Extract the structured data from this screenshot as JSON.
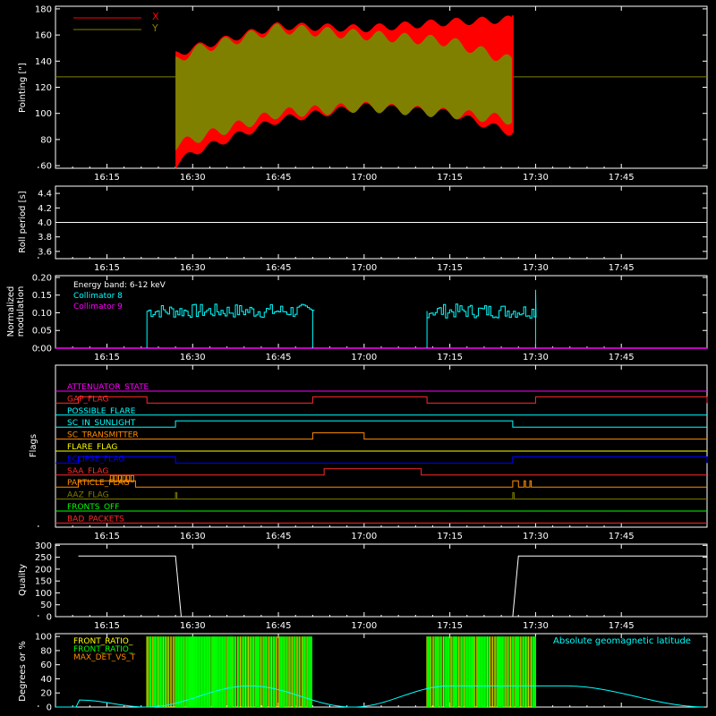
{
  "time_axis": {
    "start_hour": 16.1,
    "end_hour": 18.0,
    "tick_hours": [
      16.25,
      16.5,
      16.75,
      17.0,
      17.25,
      17.5,
      17.75
    ],
    "tick_labels": [
      "16:15",
      "16:30",
      "16:45",
      "17:00",
      "17:15",
      "17:30",
      "17:45"
    ]
  },
  "panels": {
    "pointing": {
      "ylabel": "Pointing [\"]",
      "yticks": [
        "60",
        "80",
        "100",
        "120",
        "140",
        "160",
        "180"
      ],
      "legend": [
        {
          "name": "X",
          "color": "#ff0000"
        },
        {
          "name": "Y",
          "color": "#808000"
        }
      ]
    },
    "roll": {
      "ylabel": "Roll period [s]",
      "yticks": [
        "3.6",
        "3.8",
        "4.0",
        "4.2",
        "4.4"
      ]
    },
    "modulation": {
      "ylabel": "Normalized modulation",
      "yticks": [
        "0.00",
        "0.05",
        "0.10",
        "0.15",
        "0.20"
      ],
      "legend": [
        {
          "name": "Energy band: 6-12 keV",
          "color": "#ffffff"
        },
        {
          "name": "Collimator 8",
          "color": "#00ffff"
        },
        {
          "name": "Collimator 9",
          "color": "#ff00ff"
        }
      ]
    },
    "flags": {
      "ylabel": "Flags",
      "names": [
        "ATTENUATOR_STATE",
        "GAP_FLAG",
        "POSSIBLE_FLARE",
        "SC_IN_SUNLIGHT",
        "SC_TRANSMITTER",
        "FLARE_FLAG",
        "ECLIPSE_FLAG",
        "SAA_FLAG",
        "PARTICLE_FLAG",
        "AAZ_FLAG",
        "FRONTS_OFF",
        "BAD_PACKETS"
      ],
      "colors": [
        "#ff00ff",
        "#ff2a2a",
        "#00ffff",
        "#00ffff",
        "#ff8c00",
        "#ffff00",
        "#0000ff",
        "#ff2a2a",
        "#ff8c00",
        "#808000",
        "#00ff00",
        "#ff2a2a"
      ]
    },
    "quality": {
      "ylabel": "Quality",
      "yticks": [
        "0",
        "50",
        "100",
        "150",
        "200",
        "250",
        "300"
      ]
    },
    "degrees": {
      "ylabel": "Degrees or %",
      "yticks": [
        "0",
        "20",
        "40",
        "60",
        "80",
        "100"
      ],
      "legend": [
        {
          "name": "FRONT_RATIO_",
          "color": "#ffff00"
        },
        {
          "name": "FRONT_RATIO_",
          "color": "#00ff00"
        },
        {
          "name": "MAX_DET_VS_T",
          "color": "#ff8c00"
        }
      ],
      "right_legend": {
        "name": "Absolute geomagnetic latitude",
        "color": "#00ffff"
      }
    }
  },
  "chart_data": [
    {
      "type": "area",
      "title": "",
      "ylabel": "Pointing [\"]",
      "ylim": [
        60,
        180
      ],
      "reference_line_y": 128,
      "series": [
        {
          "name": "X",
          "color": "#ff0000",
          "x": [
            "16:27",
            "16:30",
            "16:45",
            "17:00",
            "17:15",
            "17:26"
          ],
          "upper": [
            145,
            150,
            167,
            165,
            170,
            172
          ],
          "lower": [
            60,
            70,
            95,
            105,
            100,
            85
          ]
        },
        {
          "name": "Y",
          "color": "#808000",
          "x": [
            "16:27",
            "16:30",
            "16:45",
            "17:00",
            "17:15",
            "17:26"
          ],
          "upper": [
            140,
            148,
            165,
            160,
            155,
            140
          ],
          "lower": [
            75,
            80,
            100,
            105,
            100,
            95
          ]
        }
      ]
    },
    {
      "type": "line",
      "ylabel": "Roll period [s]",
      "ylim": [
        3.5,
        4.5
      ],
      "series": [
        {
          "name": "",
          "color": "#ffffff",
          "x": [
            "16:10",
            "18:00"
          ],
          "values": [
            4.0,
            4.0
          ]
        }
      ]
    },
    {
      "type": "line",
      "ylabel": "Normalized modulation",
      "ylim": [
        0,
        0.2
      ],
      "series": [
        {
          "name": "Collimator 8",
          "color": "#00ffff",
          "segments": [
            {
              "start": "16:22",
              "end": "16:51",
              "mean": 0.105,
              "spread": 0.02
            },
            {
              "start": "17:11",
              "end": "17:30",
              "mean": 0.105,
              "spread": 0.02
            }
          ],
          "spike_end": 0.165
        },
        {
          "name": "Collimator 9",
          "color": "#ff00ff",
          "x": [
            "16:10",
            "18:00"
          ],
          "values": [
            0,
            0
          ]
        }
      ]
    },
    {
      "type": "line",
      "ylabel": "Flags",
      "flag_highs": {
        "ATTENUATOR_STATE": [],
        "GAP_FLAG": [
          [
            "16:10",
            "16:22"
          ],
          [
            "16:51",
            "17:11"
          ],
          [
            "17:30",
            "18:00"
          ]
        ],
        "POSSIBLE_FLARE": [],
        "SC_IN_SUNLIGHT": [
          [
            "16:27",
            "17:26"
          ]
        ],
        "SC_TRANSMITTER": [
          [
            "16:51",
            "17:00"
          ]
        ],
        "FLARE_FLAG": [],
        "ECLIPSE_FLAG": [
          [
            "16:10",
            "16:27"
          ],
          [
            "17:26",
            "18:00"
          ]
        ],
        "SAA_FLAG": [
          [
            "16:53",
            "17:10"
          ]
        ],
        "PARTICLE_FLAG": [
          [
            "16:10",
            "16:20"
          ],
          [
            "17:26",
            "17:27"
          ],
          [
            "17:28",
            "17:28"
          ],
          [
            "17:29",
            "17:29"
          ]
        ],
        "AAZ_FLAG": [
          [
            "16:27",
            "16:27"
          ],
          [
            "17:26",
            "17:26"
          ]
        ],
        "FRONTS_OFF": [],
        "BAD_PACKETS": []
      }
    },
    {
      "type": "line",
      "ylabel": "Quality",
      "ylim": [
        0,
        300
      ],
      "series": [
        {
          "name": "",
          "color": "#ffffff",
          "x": [
            "16:10",
            "16:27",
            "16:28",
            "17:26",
            "17:27",
            "18:00"
          ],
          "values": [
            255,
            255,
            0,
            0,
            255,
            255
          ]
        }
      ]
    },
    {
      "type": "bar",
      "ylabel": "Degrees or %",
      "ylim": [
        0,
        100
      ],
      "series": [
        {
          "name": "FRONT_RATIO_",
          "color": "#00ff00",
          "active_ranges": [
            [
              "16:22",
              "16:51"
            ],
            [
              "17:11",
              "17:30"
            ]
          ],
          "value": 100
        },
        {
          "name": "Absolute geomagnetic latitude",
          "color": "#00ffff",
          "x": [
            "16:10",
            "16:22",
            "16:40",
            "16:58",
            "17:15",
            "17:35",
            "18:00"
          ],
          "values": [
            10,
            0,
            30,
            0,
            30,
            30,
            0
          ]
        }
      ]
    }
  ]
}
